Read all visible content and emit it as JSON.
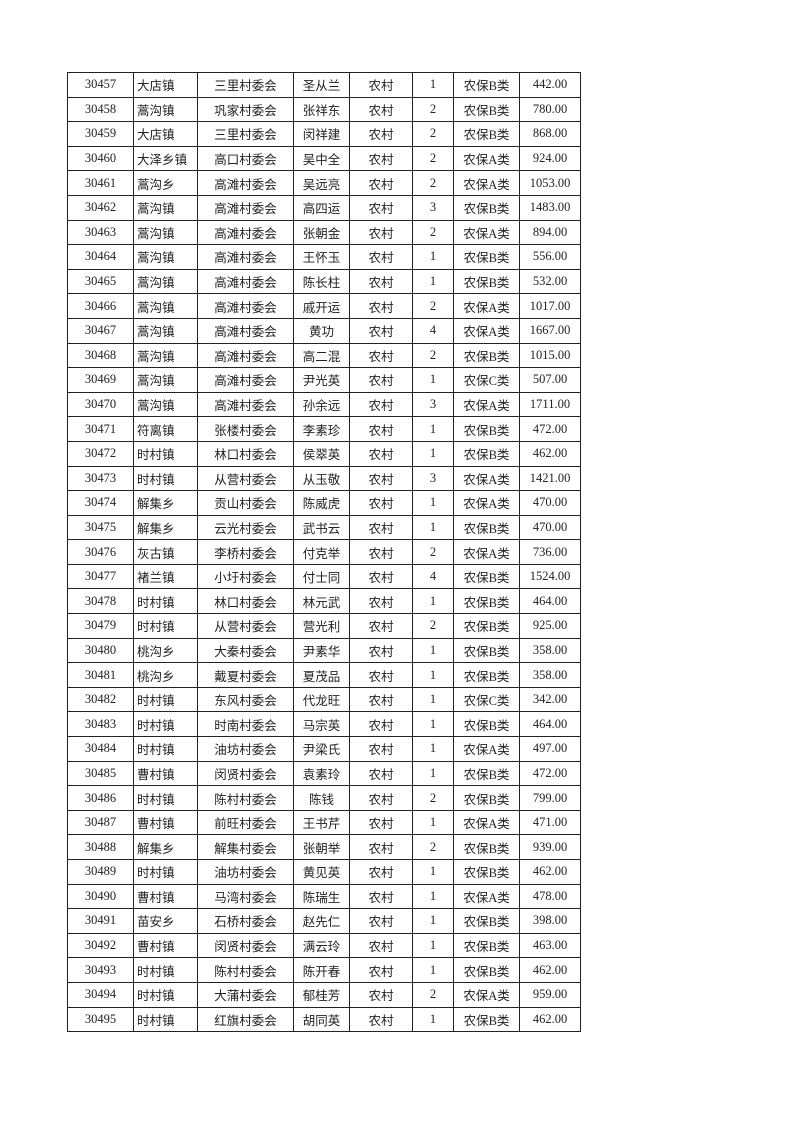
{
  "table": {
    "rows": [
      [
        "30457",
        "大店镇",
        "三里村委会",
        "圣从兰",
        "农村",
        "1",
        "农保B类",
        "442.00"
      ],
      [
        "30458",
        "蒿沟镇",
        "巩家村委会",
        "张祥东",
        "农村",
        "2",
        "农保B类",
        "780.00"
      ],
      [
        "30459",
        "大店镇",
        "三里村委会",
        "闵祥建",
        "农村",
        "2",
        "农保B类",
        "868.00"
      ],
      [
        "30460",
        "大泽乡镇",
        "高口村委会",
        "吴中全",
        "农村",
        "2",
        "农保A类",
        "924.00"
      ],
      [
        "30461",
        "蒿沟乡",
        "高滩村委会",
        "吴远亮",
        "农村",
        "2",
        "农保A类",
        "1053.00"
      ],
      [
        "30462",
        "蒿沟镇",
        "高滩村委会",
        "高四运",
        "农村",
        "3",
        "农保B类",
        "1483.00"
      ],
      [
        "30463",
        "蒿沟镇",
        "高滩村委会",
        "张朝金",
        "农村",
        "2",
        "农保A类",
        "894.00"
      ],
      [
        "30464",
        "蒿沟镇",
        "高滩村委会",
        "王怀玉",
        "农村",
        "1",
        "农保B类",
        "556.00"
      ],
      [
        "30465",
        "蒿沟镇",
        "高滩村委会",
        "陈长柱",
        "农村",
        "1",
        "农保B类",
        "532.00"
      ],
      [
        "30466",
        "蒿沟镇",
        "高滩村委会",
        "戚开运",
        "农村",
        "2",
        "农保A类",
        "1017.00"
      ],
      [
        "30467",
        "蒿沟镇",
        "高滩村委会",
        "黄功",
        "农村",
        "4",
        "农保A类",
        "1667.00"
      ],
      [
        "30468",
        "蒿沟镇",
        "高滩村委会",
        "高二混",
        "农村",
        "2",
        "农保B类",
        "1015.00"
      ],
      [
        "30469",
        "蒿沟镇",
        "高滩村委会",
        "尹光英",
        "农村",
        "1",
        "农保C类",
        "507.00"
      ],
      [
        "30470",
        "蒿沟镇",
        "高滩村委会",
        "孙余远",
        "农村",
        "3",
        "农保A类",
        "1711.00"
      ],
      [
        "30471",
        "符离镇",
        "张楼村委会",
        "李素珍",
        "农村",
        "1",
        "农保B类",
        "472.00"
      ],
      [
        "30472",
        "时村镇",
        "林口村委会",
        "侯翠英",
        "农村",
        "1",
        "农保B类",
        "462.00"
      ],
      [
        "30473",
        "时村镇",
        "从营村委会",
        "从玉敬",
        "农村",
        "3",
        "农保A类",
        "1421.00"
      ],
      [
        "30474",
        "解集乡",
        "贡山村委会",
        "陈威虎",
        "农村",
        "1",
        "农保A类",
        "470.00"
      ],
      [
        "30475",
        "解集乡",
        "云光村委会",
        "武书云",
        "农村",
        "1",
        "农保B类",
        "470.00"
      ],
      [
        "30476",
        "灰古镇",
        "李桥村委会",
        "付克举",
        "农村",
        "2",
        "农保A类",
        "736.00"
      ],
      [
        "30477",
        "褚兰镇",
        "小圩村委会",
        "付士同",
        "农村",
        "4",
        "农保B类",
        "1524.00"
      ],
      [
        "30478",
        "时村镇",
        "林口村委会",
        "林元武",
        "农村",
        "1",
        "农保B类",
        "464.00"
      ],
      [
        "30479",
        "时村镇",
        "从营村委会",
        "营光利",
        "农村",
        "2",
        "农保B类",
        "925.00"
      ],
      [
        "30480",
        "桃沟乡",
        "大秦村委会",
        "尹素华",
        "农村",
        "1",
        "农保B类",
        "358.00"
      ],
      [
        "30481",
        "桃沟乡",
        "戴夏村委会",
        "夏茂品",
        "农村",
        "1",
        "农保B类",
        "358.00"
      ],
      [
        "30482",
        "时村镇",
        "东风村委会",
        "代龙旺",
        "农村",
        "1",
        "农保C类",
        "342.00"
      ],
      [
        "30483",
        "时村镇",
        "时南村委会",
        "马宗英",
        "农村",
        "1",
        "农保B类",
        "464.00"
      ],
      [
        "30484",
        "时村镇",
        "油坊村委会",
        "尹梁氏",
        "农村",
        "1",
        "农保A类",
        "497.00"
      ],
      [
        "30485",
        "曹村镇",
        "闵贤村委会",
        "袁素玲",
        "农村",
        "1",
        "农保B类",
        "472.00"
      ],
      [
        "30486",
        "时村镇",
        "陈村村委会",
        "陈钱",
        "农村",
        "2",
        "农保B类",
        "799.00"
      ],
      [
        "30487",
        "曹村镇",
        "前旺村委会",
        "王书芹",
        "农村",
        "1",
        "农保A类",
        "471.00"
      ],
      [
        "30488",
        "解集乡",
        "解集村委会",
        "张朝举",
        "农村",
        "2",
        "农保B类",
        "939.00"
      ],
      [
        "30489",
        "时村镇",
        "油坊村委会",
        "黄见英",
        "农村",
        "1",
        "农保B类",
        "462.00"
      ],
      [
        "30490",
        "曹村镇",
        "马湾村委会",
        "陈瑞生",
        "农村",
        "1",
        "农保A类",
        "478.00"
      ],
      [
        "30491",
        "苗安乡",
        "石桥村委会",
        "赵先仁",
        "农村",
        "1",
        "农保B类",
        "398.00"
      ],
      [
        "30492",
        "曹村镇",
        "闵贤村委会",
        "满云玲",
        "农村",
        "1",
        "农保B类",
        "463.00"
      ],
      [
        "30493",
        "时村镇",
        "陈村村委会",
        "陈开春",
        "农村",
        "1",
        "农保B类",
        "462.00"
      ],
      [
        "30494",
        "时村镇",
        "大蒲村委会",
        "郁桂芳",
        "农村",
        "2",
        "农保A类",
        "959.00"
      ],
      [
        "30495",
        "时村镇",
        "红旗村委会",
        "胡同英",
        "农村",
        "1",
        "农保B类",
        "462.00"
      ]
    ]
  }
}
